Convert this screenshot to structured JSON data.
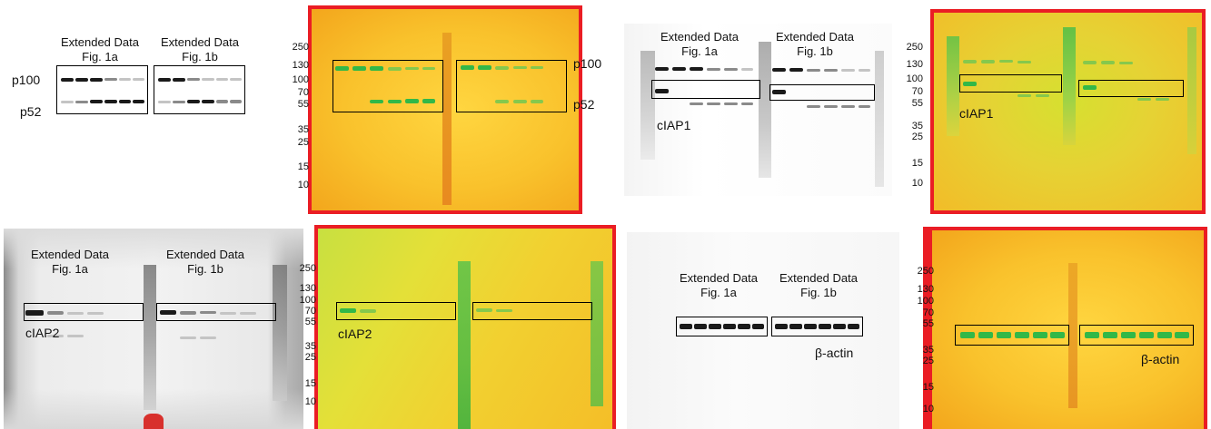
{
  "labels": {
    "ext_a": "Extended Data",
    "fig_a": "Fig. 1a",
    "ext_b": "Extended Data",
    "fig_b": "Fig. 1b"
  },
  "proteins": {
    "p100": "p100",
    "p52": "p52",
    "ciap1": "cIAP1",
    "ciap2": "cIAP2",
    "bactin": "β-actin"
  },
  "markers": [
    "250",
    "130",
    "100",
    "70",
    "55",
    "35",
    "25",
    "15",
    "10"
  ],
  "colors": {
    "blot_band": "#1a1a1a",
    "membrane_yellow": "#f9c22c",
    "membrane_red_edge": "#ea1d24",
    "ladder_green": "#32b848",
    "box_outline": "#000000"
  }
}
